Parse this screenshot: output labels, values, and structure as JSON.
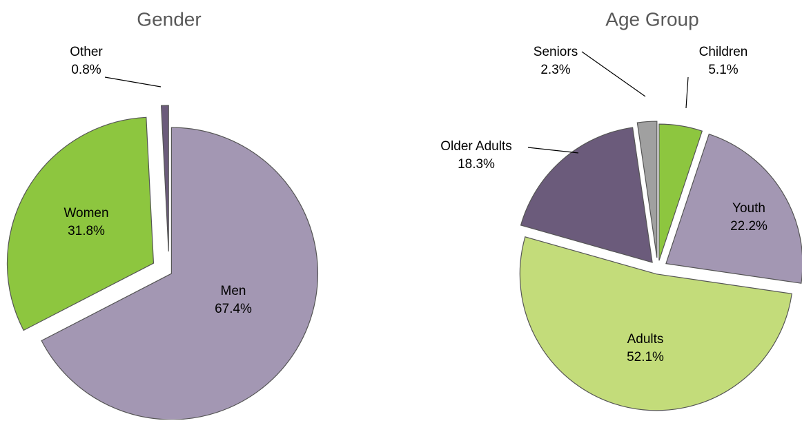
{
  "chart_data": [
    {
      "type": "pie",
      "title": "Gender",
      "categories": [
        "Men",
        "Women",
        "Other"
      ],
      "values": [
        67.4,
        31.8,
        0.8
      ],
      "value_labels": [
        "67.4%",
        "31.8%",
        "0.8%"
      ],
      "colors": [
        "#a397b3",
        "#8dc63f",
        "#6b5b7b"
      ]
    },
    {
      "type": "pie",
      "title": "Age Group",
      "categories": [
        "Children",
        "Youth",
        "Adults",
        "Older Adults",
        "Seniors"
      ],
      "values": [
        5.1,
        22.2,
        52.1,
        18.3,
        2.3
      ],
      "value_labels": [
        "5.1%",
        "22.2%",
        "52.1%",
        "18.3%",
        "2.3%"
      ],
      "colors": [
        "#8dc63f",
        "#a397b3",
        "#c3dc7a",
        "#6b5b7b",
        "#a0a0a0"
      ]
    }
  ]
}
